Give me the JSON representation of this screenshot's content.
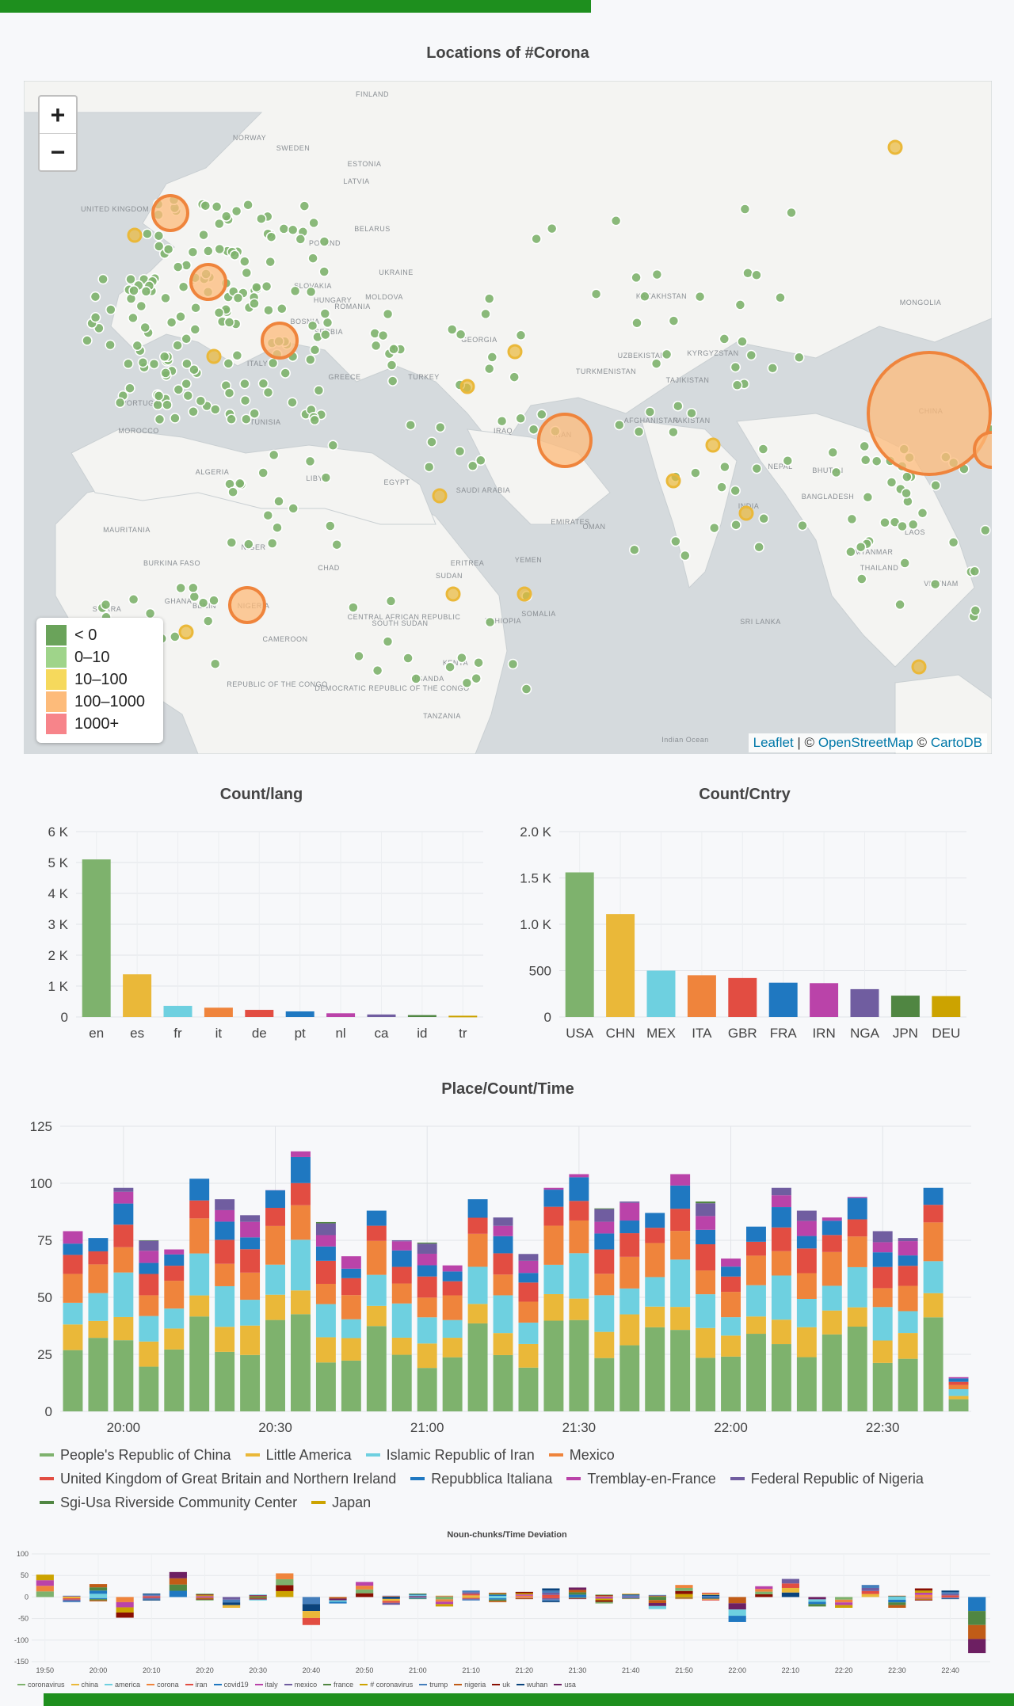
{
  "map": {
    "title": "Locations of #Corona",
    "zoom_in": "+",
    "zoom_out": "−",
    "legend": [
      {
        "label": "< 0",
        "color": "#6aa35a"
      },
      {
        "label": "0–10",
        "color": "#9fd48a"
      },
      {
        "label": "10–100",
        "color": "#f6d95c"
      },
      {
        "label": "100–1000",
        "color": "#fdbb7a"
      },
      {
        "label": "1000+",
        "color": "#f7848a"
      }
    ],
    "attribution": {
      "leaflet": "Leaflet",
      "sep1": " | © ",
      "osm": "OpenStreetMap",
      "sep2": " © ",
      "carto": "CartoDB"
    },
    "labels": [
      "FINLAND",
      "NORWAY",
      "SWEDEN",
      "ESTONIA",
      "LATVIA",
      "UNITED KINGDOM",
      "POLAND",
      "BELARUS",
      "UKRAINE",
      "SLOVAKIA",
      "HUNGARY",
      "MOLDOVA",
      "ROMANIA",
      "BOSNIA",
      "SERBIA",
      "ITALY",
      "GREECE",
      "TURKEY",
      "GEORGIA",
      "KAZAKHSTAN",
      "MONGOLIA",
      "UZBEKISTAN",
      "KYRGYZSTAN",
      "TURKMENISTAN",
      "TAJIKISTAN",
      "AFGHANISTAN",
      "PAKISTAN",
      "IRAN",
      "IRAQ",
      "CHINA",
      "NEPAL",
      "BHUTAN",
      "BANGLADESH",
      "INDIA",
      "MYANMAR",
      "LAOS",
      "THAILAND",
      "VIETNAM",
      "SRI LANKA",
      "TUNISIA",
      "ALGERIA",
      "LIBYA",
      "EGYPT",
      "SAUDI ARABIA",
      "EMIRATES",
      "OMAN",
      "YEMEN",
      "ERITREA",
      "SUDAN",
      "CHAD",
      "NIGER",
      "MAURITANIA",
      "BURKINA FASO",
      "GHANA",
      "BENIN",
      "NIGERIA",
      "CAMEROON",
      "CENTRAL AFRICAN REPUBLIC",
      "SOUTH SUDAN",
      "ETHIOPIA",
      "SOMALIA",
      "KENYA",
      "UGANDA",
      "TANZANIA",
      "REPUBLIC OF THE CONGO",
      "DEMOCRATIC REPUBLIC OF THE CONGO",
      "SIERRA",
      "PORTUGAL",
      "MOROCCO",
      "Indian Ocean"
    ]
  },
  "colors": {
    "green": "#7eb26d",
    "yellow": "#eab839",
    "cyan": "#6ed0e0",
    "orange": "#ef843c",
    "red": "#e24d42",
    "blue": "#1f78c1",
    "magenta": "#ba43a9",
    "purple": "#705da0",
    "darkgreen": "#508642",
    "gold": "#cca300"
  },
  "chart_data": [
    {
      "type": "bar",
      "title": "Count/lang",
      "categories": [
        "en",
        "es",
        "fr",
        "it",
        "de",
        "pt",
        "nl",
        "ca",
        "id",
        "tr"
      ],
      "values": [
        5100,
        1380,
        360,
        300,
        230,
        180,
        120,
        80,
        60,
        40
      ],
      "ylim": [
        0,
        6000
      ],
      "yticks": [
        0,
        1000,
        2000,
        3000,
        4000,
        5000,
        6000
      ],
      "ytick_labels": [
        "0",
        "1 K",
        "2 K",
        "3 K",
        "4 K",
        "5 K",
        "6 K"
      ],
      "colors": [
        "#7eb26d",
        "#eab839",
        "#6ed0e0",
        "#ef843c",
        "#e24d42",
        "#1f78c1",
        "#ba43a9",
        "#705da0",
        "#508642",
        "#cca300"
      ],
      "grid": true
    },
    {
      "type": "bar",
      "title": "Count/Cntry",
      "categories": [
        "USA",
        "CHN",
        "MEX",
        "ITA",
        "GBR",
        "FRA",
        "IRN",
        "NGA",
        "JPN",
        "DEU"
      ],
      "values": [
        1560,
        1110,
        500,
        450,
        420,
        370,
        365,
        300,
        230,
        225
      ],
      "ylim": [
        0,
        2000
      ],
      "yticks": [
        0,
        500,
        1000,
        1500,
        2000
      ],
      "ytick_labels": [
        "0",
        "500",
        "1.0 K",
        "1.5 K",
        "2.0 K"
      ],
      "colors": [
        "#7eb26d",
        "#eab839",
        "#6ed0e0",
        "#ef843c",
        "#e24d42",
        "#1f78c1",
        "#ba43a9",
        "#705da0",
        "#508642",
        "#cca300"
      ],
      "grid": true
    },
    {
      "type": "bar",
      "stacked": true,
      "title": "Place/Count/Time",
      "x": [
        "19:50",
        "19:55",
        "20:00",
        "20:05",
        "20:10",
        "20:15",
        "20:20",
        "20:25",
        "20:30",
        "20:35",
        "20:40",
        "20:45",
        "20:50",
        "20:55",
        "21:00",
        "21:05",
        "21:10",
        "21:15",
        "21:20",
        "21:25",
        "21:30",
        "21:35",
        "21:40",
        "21:45",
        "21:50",
        "21:55",
        "22:00",
        "22:05",
        "22:10",
        "22:15",
        "22:20",
        "22:25",
        "22:30",
        "22:35",
        "22:40",
        "22:45"
      ],
      "totals": [
        79,
        76,
        98,
        75,
        71,
        102,
        93,
        86,
        97,
        114,
        83,
        68,
        88,
        75,
        74,
        64,
        93,
        85,
        69,
        98,
        104,
        89,
        92,
        87,
        104,
        92,
        67,
        81,
        98,
        88,
        85,
        94,
        79,
        76,
        98,
        15
      ],
      "weights": [
        0.34,
        0.12,
        0.16,
        0.14,
        0.1,
        0.08,
        0.07,
        0.05,
        0.05,
        0.04
      ],
      "xtick_labels": [
        "20:00",
        "20:30",
        "21:00",
        "21:30",
        "22:00",
        "22:30"
      ],
      "ylim": [
        0,
        125
      ],
      "yticks": [
        0,
        25,
        50,
        75,
        100,
        125
      ],
      "series": [
        {
          "name": "People's Republic of China",
          "color": "#7eb26d"
        },
        {
          "name": "Little America",
          "color": "#eab839"
        },
        {
          "name": "Islamic Republic of Iran",
          "color": "#6ed0e0"
        },
        {
          "name": "Mexico",
          "color": "#ef843c"
        },
        {
          "name": "United Kingdom of Great Britain and Northern Ireland",
          "color": "#e24d42"
        },
        {
          "name": "Repubblica Italiana",
          "color": "#1f78c1"
        },
        {
          "name": "Tremblay-en-France",
          "color": "#ba43a9"
        },
        {
          "name": "Federal Republic of Nigeria",
          "color": "#705da0"
        },
        {
          "name": "Sgi-Usa Riverside Community Center",
          "color": "#508642"
        },
        {
          "name": "Japan",
          "color": "#cca300"
        }
      ],
      "legend_position": "bottom"
    },
    {
      "type": "bar",
      "stacked": true,
      "title": "Noun-chunks/Time Deviation",
      "x": [
        "19:50",
        "19:55",
        "20:00",
        "20:05",
        "20:10",
        "20:15",
        "20:20",
        "20:25",
        "20:30",
        "20:35",
        "20:40",
        "20:45",
        "20:50",
        "20:55",
        "21:00",
        "21:05",
        "21:10",
        "21:15",
        "21:20",
        "21:25",
        "21:30",
        "21:35",
        "21:40",
        "21:45",
        "21:50",
        "21:55",
        "22:00",
        "22:05",
        "22:10",
        "22:15",
        "22:20",
        "22:25",
        "22:30",
        "22:35",
        "22:40",
        "22:45"
      ],
      "pos": [
        52,
        3,
        30,
        0,
        8,
        58,
        8,
        0,
        6,
        55,
        0,
        0,
        35,
        3,
        8,
        3,
        15,
        10,
        12,
        20,
        22,
        6,
        8,
        5,
        28,
        10,
        0,
        25,
        42,
        0,
        0,
        28,
        3,
        20,
        15,
        0
      ],
      "neg": [
        0,
        12,
        10,
        48,
        8,
        0,
        8,
        25,
        8,
        0,
        65,
        15,
        0,
        18,
        5,
        22,
        8,
        12,
        5,
        12,
        5,
        15,
        5,
        28,
        5,
        8,
        58,
        0,
        0,
        22,
        25,
        0,
        25,
        8,
        5,
        130
      ],
      "xtick_labels": [
        "19:50",
        "20:00",
        "20:10",
        "20:20",
        "20:30",
        "20:40",
        "20:50",
        "21:00",
        "21:10",
        "21:20",
        "21:30",
        "21:40",
        "21:50",
        "22:00",
        "22:10",
        "22:20",
        "22:30",
        "22:40"
      ],
      "ylim": [
        -150,
        100
      ],
      "yticks": [
        -150,
        -100,
        -50,
        0,
        50,
        100
      ],
      "series": [
        {
          "name": "coronavirus",
          "color": "#7eb26d"
        },
        {
          "name": "china",
          "color": "#eab839"
        },
        {
          "name": "america",
          "color": "#6ed0e0"
        },
        {
          "name": "corona",
          "color": "#ef843c"
        },
        {
          "name": "iran",
          "color": "#e24d42"
        },
        {
          "name": "covid19",
          "color": "#1f78c1"
        },
        {
          "name": "italy",
          "color": "#ba43a9"
        },
        {
          "name": "mexico",
          "color": "#705da0"
        },
        {
          "name": "france",
          "color": "#508642"
        },
        {
          "name": "# coronavirus",
          "color": "#cca300"
        },
        {
          "name": "trump",
          "color": "#447ebc"
        },
        {
          "name": "nigeria",
          "color": "#c15c17"
        },
        {
          "name": "uk",
          "color": "#890f02"
        },
        {
          "name": "wuhan",
          "color": "#0a437c"
        },
        {
          "name": "usa",
          "color": "#6d1f62"
        }
      ],
      "legend_position": "bottom"
    }
  ]
}
